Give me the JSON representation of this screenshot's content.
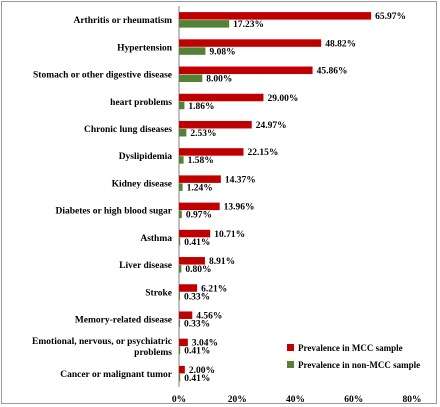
{
  "chart_data": {
    "type": "bar",
    "orientation": "horizontal",
    "categories": [
      "Arthritis or rheumatism",
      "Hypertension",
      "Stomach or other digestive disease",
      "heart problems",
      "Chronic lung diseases",
      "Dyslipidemia",
      "Kidney disease",
      "Diabetes or high blood sugar",
      "Asthma",
      "Liver disease",
      "Stroke",
      "Memory-related disease",
      "Emotional, nervous, or psychiatric problems",
      "Cancer or malignant tumor"
    ],
    "series": [
      {
        "name": "Prevalence in MCC sample",
        "color": "#c00000",
        "values": [
          65.97,
          48.82,
          45.86,
          29.0,
          24.97,
          22.15,
          14.37,
          13.96,
          10.71,
          8.91,
          6.21,
          4.56,
          3.04,
          2.0
        ],
        "labels": [
          "65.97%",
          "48.82%",
          "45.86%",
          "29.00%",
          "24.97%",
          "22.15%",
          "14.37%",
          "13.96%",
          "10.71%",
          "8.91%",
          "6.21%",
          "4.56%",
          "3.04%",
          "2.00%"
        ]
      },
      {
        "name": "Prevalence in non-MCC sample",
        "color": "#538135",
        "values": [
          17.23,
          9.08,
          8.0,
          1.86,
          2.53,
          1.58,
          1.24,
          0.97,
          0.41,
          0.8,
          0.33,
          0.33,
          0.41,
          0.41
        ],
        "labels": [
          "17.23%",
          "9.08%",
          "8.00%",
          "1.86%",
          "2.53%",
          "1.58%",
          "1.24%",
          "0.97%",
          "0.41%",
          "0.80%",
          "0.33%",
          "0.33%",
          "0.41%",
          "0.41%"
        ]
      }
    ],
    "xlim": [
      0,
      80
    ],
    "x_ticks": [
      "0%",
      "20%",
      "40%",
      "60%",
      "80%"
    ],
    "grid": false,
    "legend_position": "bottom-right"
  }
}
